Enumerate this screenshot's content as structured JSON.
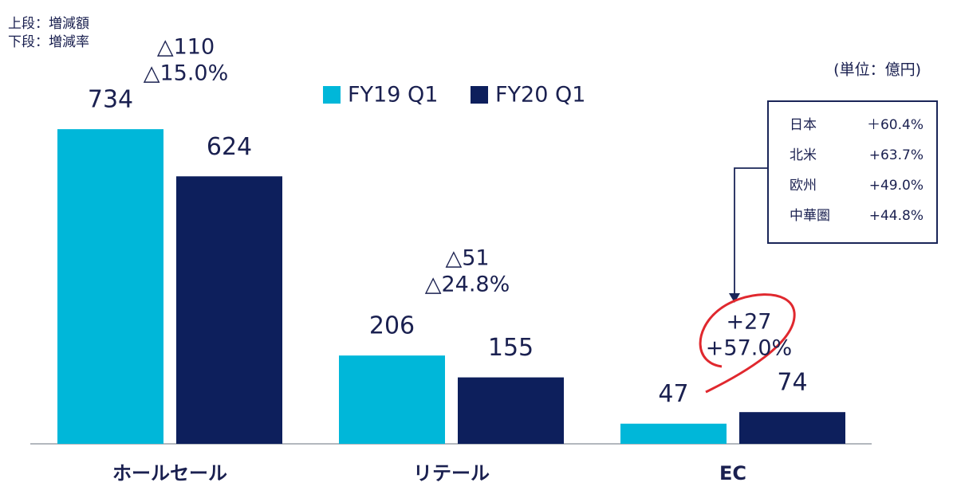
{
  "chart_data": {
    "type": "bar",
    "note": [
      "上段：増減額",
      "下段：増減率"
    ],
    "unit": "(単位：億円)",
    "categories": [
      "ホールセール",
      "リテール",
      "EC"
    ],
    "series": [
      {
        "name": "FY19 Q1",
        "color": "#00b7d9",
        "values": [
          734,
          206,
          47
        ]
      },
      {
        "name": "FY20 Q1",
        "color": "#0d1f5c",
        "values": [
          624,
          155,
          74
        ]
      }
    ],
    "changes": [
      {
        "amount": "△110",
        "rate": "△15.0%"
      },
      {
        "amount": "△51",
        "rate": "△24.8%"
      },
      {
        "amount": "+27",
        "rate": "+57.0%"
      }
    ],
    "inset": [
      [
        "日本",
        "＋60.4%"
      ],
      [
        "北米",
        "+63.7%"
      ],
      [
        "欧州",
        "+49.0%"
      ],
      [
        "中華圏",
        "+44.8%"
      ]
    ]
  }
}
